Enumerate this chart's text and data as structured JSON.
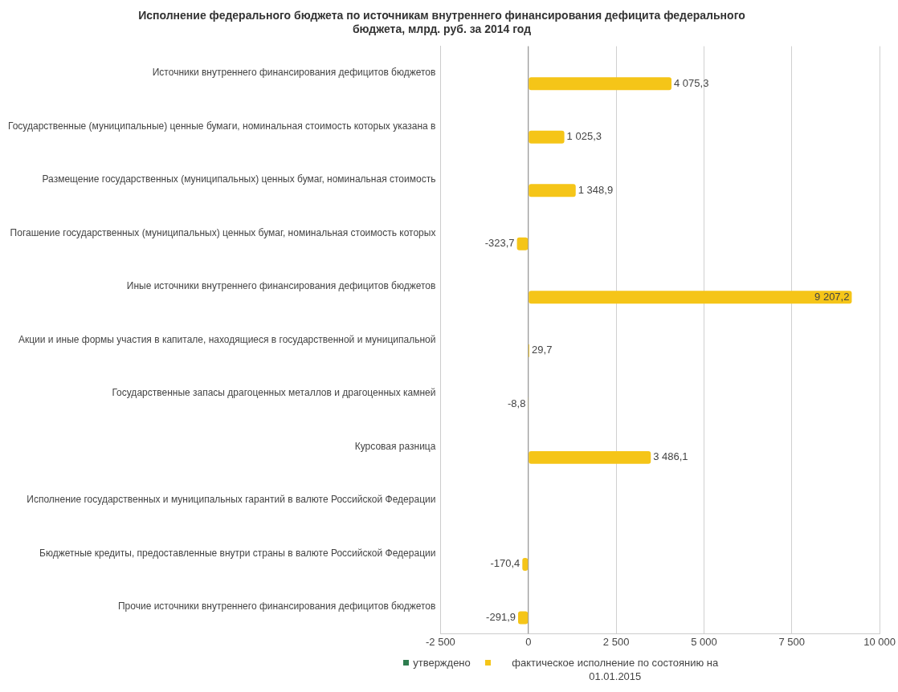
{
  "chart_data": {
    "type": "bar",
    "orientation": "horizontal",
    "title": "Исполнение федерального бюджета по источникам внутреннего финансирования дефицита федерального бюджета, млрд. руб. за 2014 год",
    "categories": [
      "Источники внутреннего финансирования дефицитов бюджетов",
      "Государственные (муниципальные) ценные бумаги, номинальная стоимость которых указана в",
      "Размещение государственных (муниципальных) ценных бумаг, номинальная стоимость",
      "Погашение государственных (муниципальных) ценных бумаг, номинальная стоимость которых",
      "Иные источники внутреннего финансирования дефицитов бюджетов",
      "Акции и иные формы участия в капитале, находящиеся в государственной и муниципальной",
      "Государственные запасы драгоценных металлов и драгоценных камней",
      "Курсовая разница",
      "Исполнение государственных и муниципальных гарантий в валюте Российской Федерации",
      "Бюджетные кредиты, предоставленные внутри страны в валюте Российской Федерации",
      "Прочие источники внутреннего финансирования дефицитов бюджетов"
    ],
    "series": [
      {
        "name": "утверждено",
        "color": "#2e7d4f",
        "values": [
          null,
          null,
          null,
          null,
          null,
          null,
          null,
          null,
          null,
          null,
          null
        ]
      },
      {
        "name": "фактическое исполнение по состоянию на 01.01.2015",
        "color": "#f5c518",
        "values": [
          4075.3,
          1025.3,
          1348.9,
          -323.7,
          9207.2,
          29.7,
          -8.8,
          3486.1,
          null,
          -170.4,
          -291.9
        ],
        "value_labels": [
          "4 075,3",
          "1 025,3",
          "1 348,9",
          "-323,7",
          "9 207,2",
          "29,7",
          "-8,8",
          "3 486,1",
          null,
          "-170,4",
          "-291,9"
        ]
      }
    ],
    "xlim": [
      -2500,
      10000
    ],
    "xticks": [
      {
        "value": -2500,
        "label": "-2 500"
      },
      0,
      {
        "value": 2500,
        "label": "2 500"
      },
      {
        "value": 5000,
        "label": "5 000"
      },
      {
        "value": 7500,
        "label": "7 500"
      },
      {
        "value": 10000,
        "label": "10 000"
      }
    ],
    "grid": "x",
    "legend": "bottom"
  }
}
